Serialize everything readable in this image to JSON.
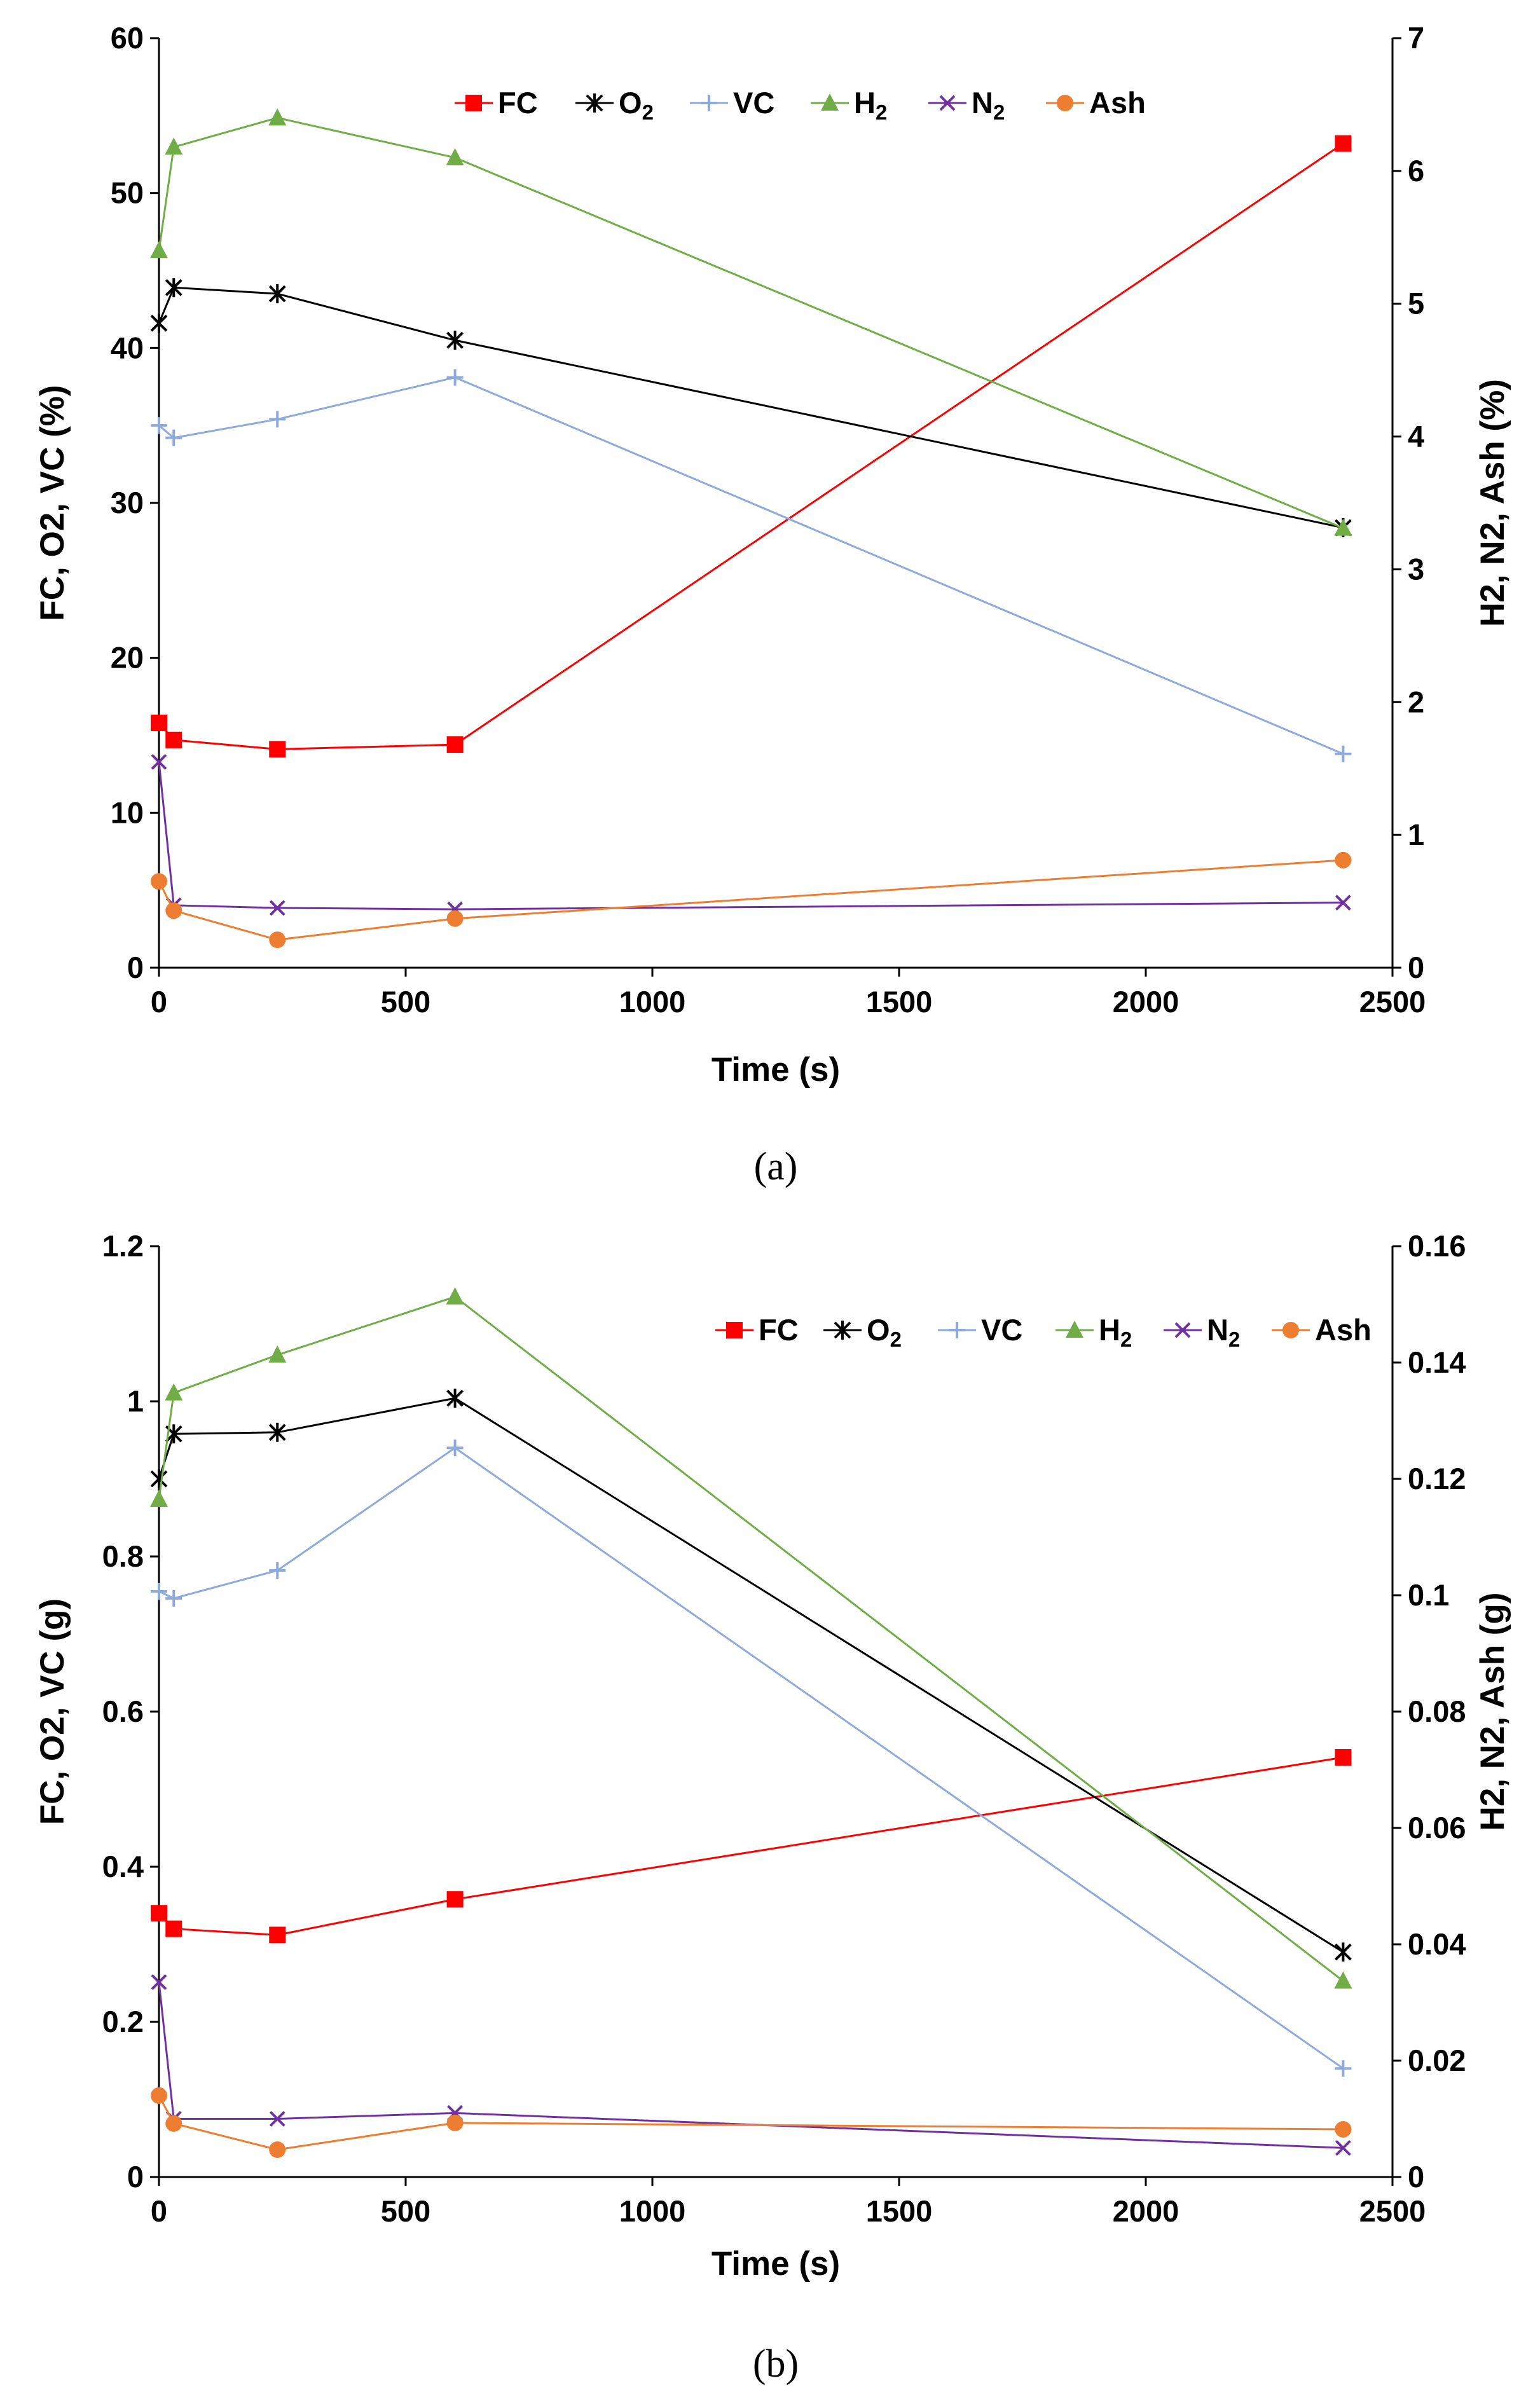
{
  "chart_data": [
    {
      "id": "a",
      "type": "line",
      "caption": "(a)",
      "xlabel": "Time (s)",
      "ylabel": "FC, O2, VC (%)",
      "y2label": "H2, N2, Ash (%)",
      "xlim": [
        0,
        2500
      ],
      "ylim": [
        0,
        60
      ],
      "y2lim": [
        0,
        7
      ],
      "xticks": [
        0,
        500,
        1000,
        1500,
        2000,
        2500
      ],
      "yticks": [
        0,
        10,
        20,
        30,
        40,
        50,
        60
      ],
      "y2ticks": [
        0,
        1,
        2,
        3,
        4,
        5,
        6,
        7
      ],
      "x": [
        0,
        30,
        240,
        600,
        2400
      ],
      "legend_position": "top-center",
      "series": [
        {
          "name": "FC",
          "label_main": "FC",
          "label_sub": "",
          "axis": "left",
          "color": "#ff0000",
          "marker": "square",
          "values": [
            15.8,
            14.7,
            14.1,
            14.4,
            53.2
          ]
        },
        {
          "name": "O2",
          "label_main": "O",
          "label_sub": "2",
          "axis": "left",
          "color": "#000000",
          "marker": "star",
          "values": [
            41.6,
            43.9,
            43.5,
            40.5,
            28.4
          ]
        },
        {
          "name": "VC",
          "label_main": "VC",
          "label_sub": "",
          "axis": "left",
          "color": "#8eaadb",
          "marker": "plus",
          "values": [
            35.0,
            34.2,
            35.4,
            38.1,
            13.8
          ]
        },
        {
          "name": "H2",
          "label_main": "H",
          "label_sub": "2",
          "axis": "right",
          "color": "#70ad47",
          "marker": "triangle",
          "values": [
            5.4,
            6.18,
            6.4,
            6.1,
            3.31
          ]
        },
        {
          "name": "N2",
          "label_main": "N",
          "label_sub": "2",
          "axis": "right",
          "color": "#7030a0",
          "marker": "x",
          "values": [
            1.55,
            0.47,
            0.45,
            0.44,
            0.49
          ]
        },
        {
          "name": "Ash",
          "label_main": "Ash",
          "label_sub": "",
          "axis": "right",
          "color": "#ed7d31",
          "marker": "circle",
          "values": [
            0.65,
            0.43,
            0.21,
            0.37,
            0.81
          ]
        }
      ]
    },
    {
      "id": "b",
      "type": "line",
      "caption": "(b)",
      "xlabel": "Time (s)",
      "ylabel": "FC, O2, VC (g)",
      "y2label": "H2, N2, Ash (g)",
      "xlim": [
        0,
        2500
      ],
      "ylim": [
        0,
        1.2
      ],
      "y2lim": [
        0,
        0.16
      ],
      "xticks": [
        0,
        500,
        1000,
        1500,
        2000,
        2500
      ],
      "yticks": [
        0,
        0.2,
        0.4,
        0.6,
        0.8,
        1,
        1.2
      ],
      "y2ticks": [
        0,
        0.02,
        0.04,
        0.06,
        0.08,
        0.1,
        0.12,
        0.14,
        0.16
      ],
      "x": [
        0,
        30,
        240,
        600,
        2400
      ],
      "legend_position": "top-right",
      "series": [
        {
          "name": "FC",
          "label_main": "FC",
          "label_sub": "",
          "axis": "left",
          "color": "#ff0000",
          "marker": "square",
          "values": [
            0.34,
            0.32,
            0.312,
            0.358,
            0.541
          ]
        },
        {
          "name": "O2",
          "label_main": "O",
          "label_sub": "2",
          "axis": "left",
          "color": "#000000",
          "marker": "star",
          "values": [
            0.9,
            0.958,
            0.96,
            1.004,
            0.29
          ]
        },
        {
          "name": "VC",
          "label_main": "VC",
          "label_sub": "",
          "axis": "left",
          "color": "#8eaadb",
          "marker": "plus",
          "values": [
            0.755,
            0.746,
            0.782,
            0.94,
            0.14
          ]
        },
        {
          "name": "H2",
          "label_main": "H",
          "label_sub": "2",
          "axis": "right",
          "color": "#70ad47",
          "marker": "triangle",
          "values": [
            0.1165,
            0.1348,
            0.1413,
            0.1513,
            0.0337
          ]
        },
        {
          "name": "N2",
          "label_main": "N",
          "label_sub": "2",
          "axis": "right",
          "color": "#7030a0",
          "marker": "x",
          "values": [
            0.0335,
            0.01,
            0.01,
            0.011,
            0.005
          ]
        },
        {
          "name": "Ash",
          "label_main": "Ash",
          "label_sub": "",
          "axis": "right",
          "color": "#ed7d31",
          "marker": "circle",
          "values": [
            0.014,
            0.0092,
            0.0047,
            0.0093,
            0.0082
          ]
        }
      ]
    }
  ]
}
